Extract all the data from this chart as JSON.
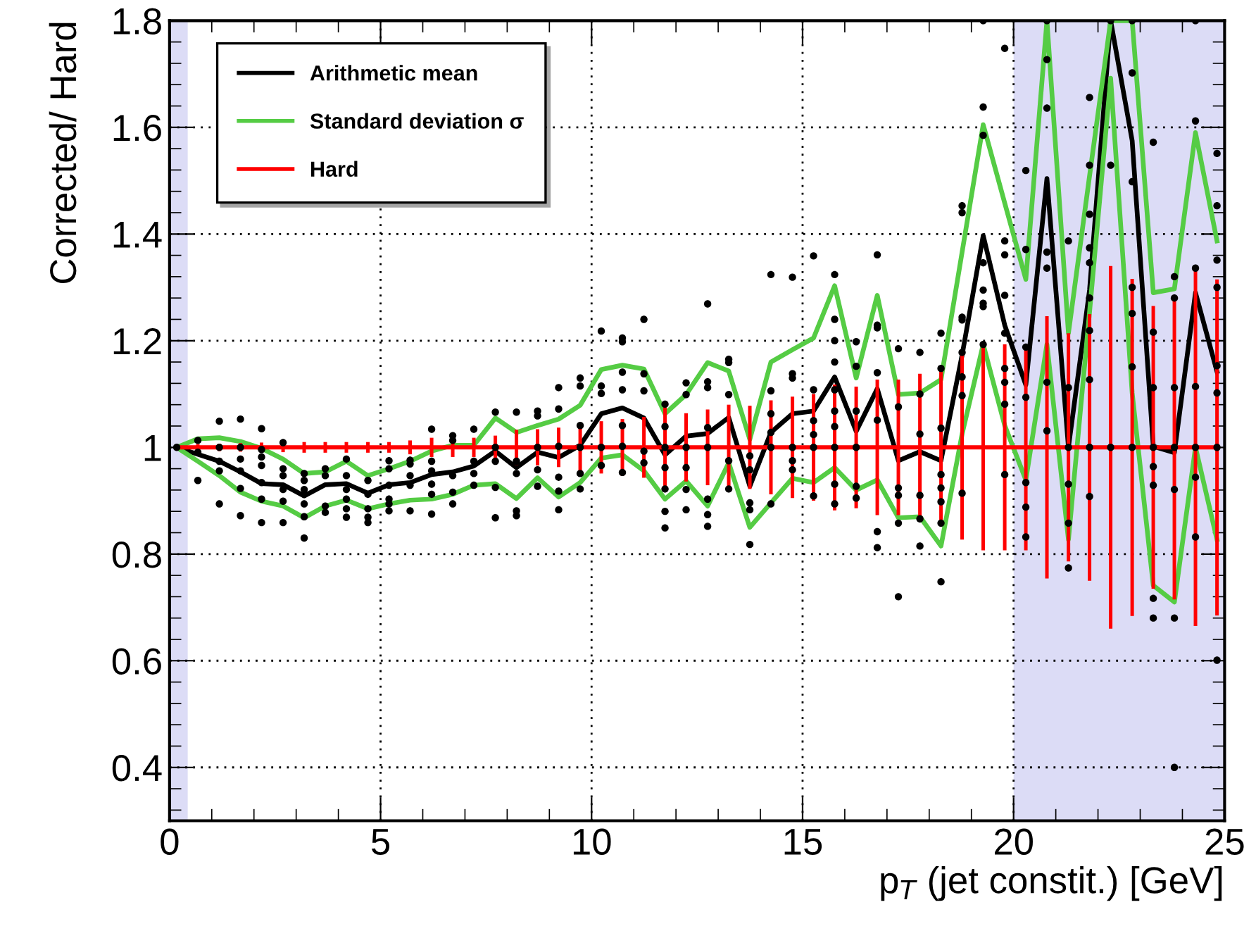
{
  "chart_data": {
    "type": "line",
    "xlabel": "p$_{T}$ (jet constit.) [GeV]",
    "ylabel": "Corrected/ Hard",
    "xlim": [
      0,
      25
    ],
    "xticks": [
      0,
      5,
      10,
      15,
      20,
      25
    ],
    "ylim": [
      0.3,
      1.8
    ],
    "yticks": [
      0.4,
      0.6,
      0.8,
      1,
      1.2,
      1.4,
      1.6,
      1.8
    ],
    "grid": true,
    "legend": "top left",
    "x": [
      0.17,
      0.67,
      1.18,
      1.68,
      2.18,
      2.69,
      3.19,
      3.69,
      4.19,
      4.7,
      5.2,
      5.7,
      6.21,
      6.71,
      7.21,
      7.72,
      8.22,
      8.72,
      9.22,
      9.73,
      10.23,
      10.73,
      11.24,
      11.74,
      12.24,
      12.75,
      13.25,
      13.75,
      14.25,
      14.76,
      15.26,
      15.76,
      16.27,
      16.77,
      17.27,
      17.78,
      18.28,
      18.78,
      19.28,
      19.79,
      20.29,
      20.79,
      21.3,
      21.8,
      22.3,
      22.81,
      23.31,
      23.81,
      24.31,
      24.82
    ],
    "bands": [
      {
        "axis": "x",
        "from": 0,
        "to": 0.43,
        "color": "#dcdcf6"
      },
      {
        "axis": "x",
        "from": 20,
        "to": 25,
        "color": "#dcdcf6"
      }
    ],
    "series": [
      {
        "type": "scatter",
        "color": "#000000",
        "marker": "circle",
        "x": [
          0.17,
          0.67,
          0.67,
          0.67,
          1.18,
          1.18,
          1.18,
          1.18,
          1.18,
          1.68,
          1.68,
          1.68,
          1.68,
          1.68,
          1.68,
          2.18,
          2.18,
          2.18,
          2.18,
          2.18,
          2.18,
          2.18,
          2.69,
          2.69,
          2.69,
          2.69,
          2.69,
          2.69,
          3.19,
          3.19,
          3.19,
          3.19,
          3.19,
          3.19,
          3.19,
          3.69,
          3.69,
          3.69,
          3.69,
          4.19,
          4.19,
          4.19,
          4.19,
          4.19,
          4.19,
          4.7,
          4.7,
          4.7,
          4.7,
          4.7,
          5.2,
          5.2,
          5.2,
          5.2,
          5.2,
          5.2,
          5.7,
          5.7,
          5.7,
          5.7,
          5.7,
          6.21,
          6.21,
          6.21,
          6.21,
          6.21,
          6.21,
          6.71,
          6.71,
          6.71,
          6.71,
          6.71,
          7.21,
          7.21,
          7.21,
          7.21,
          7.72,
          7.72,
          7.72,
          7.72,
          7.72,
          8.22,
          8.22,
          8.22,
          8.22,
          8.22,
          8.72,
          8.72,
          8.72,
          8.72,
          8.72,
          9.22,
          9.22,
          9.22,
          9.22,
          9.22,
          9.22,
          9.73,
          9.73,
          9.73,
          9.73,
          9.73,
          9.73,
          10.23,
          10.23,
          10.23,
          10.23,
          10.23,
          10.73,
          10.73,
          10.73,
          10.73,
          10.73,
          10.73,
          10.73,
          11.24,
          11.24,
          11.24,
          11.24,
          11.24,
          11.74,
          11.74,
          11.74,
          11.74,
          11.74,
          11.74,
          11.74,
          12.24,
          12.24,
          12.24,
          12.24,
          12.24,
          12.24,
          12.75,
          12.75,
          12.75,
          12.75,
          12.75,
          12.75,
          12.75,
          12.75,
          13.25,
          13.25,
          13.25,
          13.25,
          13.25,
          13.75,
          13.75,
          13.75,
          13.75,
          13.75,
          14.25,
          14.25,
          14.25,
          14.25,
          14.25,
          14.25,
          14.76,
          14.76,
          14.76,
          14.76,
          14.76,
          14.76,
          15.26,
          15.26,
          15.26,
          15.26,
          15.26,
          15.26,
          15.76,
          15.76,
          15.76,
          15.76,
          15.76,
          15.76,
          15.76,
          15.76,
          15.76,
          15.76,
          16.27,
          16.27,
          16.27,
          16.27,
          16.27,
          16.27,
          16.77,
          16.77,
          16.77,
          16.77,
          16.77,
          16.77,
          16.77,
          17.27,
          17.27,
          17.27,
          17.27,
          17.27,
          17.27,
          17.78,
          17.78,
          17.78,
          17.78,
          17.78,
          17.78,
          18.28,
          18.28,
          18.28,
          18.28,
          18.28,
          18.28,
          18.28,
          18.28,
          18.78,
          18.78,
          18.78,
          18.78,
          18.78,
          18.78,
          18.78,
          18.78,
          19.28,
          19.28,
          19.28,
          19.28,
          19.28,
          19.28,
          19.28,
          19.28,
          19.79,
          19.79,
          19.79,
          19.79,
          19.79,
          19.79,
          19.79,
          19.79,
          19.79,
          20.29,
          20.29,
          20.29,
          20.29,
          20.29,
          20.29,
          20.29,
          20.79,
          20.79,
          20.79,
          20.79,
          20.79,
          20.79,
          20.79,
          21.3,
          21.3,
          21.3,
          21.3,
          21.3,
          21.3,
          21.8,
          21.8,
          21.8,
          21.8,
          21.8,
          21.8,
          21.8,
          21.8,
          21.8,
          21.8,
          22.3,
          22.3,
          22.3,
          22.81,
          22.81,
          22.81,
          22.81,
          22.81,
          22.81,
          22.81,
          23.31,
          23.31,
          23.31,
          23.31,
          23.31,
          23.31,
          23.31,
          23.31,
          23.81,
          23.81,
          23.81,
          23.81,
          23.81,
          23.81,
          23.81,
          24.31,
          24.31,
          24.31,
          24.31,
          24.31,
          24.31,
          24.31,
          24.82,
          24.82,
          24.82,
          24.82,
          24.82,
          24.82,
          24.82,
          24.82
        ],
        "values": [
          1.0,
          1.013,
          0.991,
          0.938,
          1.049,
          1.0,
          0.974,
          0.956,
          0.894,
          1.053,
          1.0,
          0.978,
          0.956,
          0.923,
          0.872,
          1.035,
          0.996,
          0.982,
          0.966,
          0.934,
          0.903,
          0.859,
          1.009,
          0.96,
          0.947,
          0.921,
          0.899,
          0.859,
          0.951,
          0.938,
          0.921,
          0.912,
          0.894,
          0.87,
          0.83,
          0.96,
          0.947,
          0.89,
          0.878,
          0.978,
          0.947,
          0.921,
          0.903,
          0.885,
          0.869,
          0.938,
          0.912,
          0.885,
          0.869,
          0.859,
          0.975,
          0.96,
          0.929,
          0.903,
          0.894,
          0.881,
          0.976,
          0.969,
          0.947,
          0.929,
          0.881,
          1.034,
          0.974,
          0.956,
          0.931,
          0.912,
          0.875,
          1.022,
          1.013,
          0.947,
          0.916,
          0.894,
          1.034,
          0.974,
          0.951,
          0.929,
          1.066,
          1.0,
          0.974,
          0.925,
          0.868,
          1.066,
          0.974,
          0.951,
          0.881,
          0.872,
          1.068,
          1.059,
          1.0,
          0.958,
          0.927,
          1.112,
          1.072,
          1.002,
          0.944,
          0.918,
          0.883,
          1.13,
          1.115,
          1.041,
          1.0,
          0.951,
          0.922,
          1.218,
          1.115,
          1.101,
          1.0,
          0.966,
          1.205,
          1.198,
          1.141,
          1.108,
          1.041,
          1.002,
          0.953,
          1.24,
          1.138,
          1.106,
          0.993,
          0.971,
          1.081,
          1.039,
          1.0,
          0.962,
          0.922,
          0.88,
          0.849,
          1.121,
          1.099,
          1.0,
          0.962,
          0.921,
          0.883,
          1.269,
          1.123,
          1.112,
          1.037,
          1.0,
          0.903,
          0.874,
          0.852,
          1.165,
          1.159,
          1.099,
          0.975,
          0.922,
          0.984,
          0.958,
          0.896,
          0.883,
          0.818,
          1.324,
          1.106,
          1.063,
          1.028,
          1.0,
          0.894,
          1.319,
          1.138,
          1.13,
          1.0,
          0.975,
          0.958,
          1.359,
          1.108,
          1.05,
          1.024,
          1.0,
          0.909,
          1.324,
          1.24,
          1.2,
          1.16,
          1.108,
          1.068,
          1.039,
          1.0,
          0.931,
          0.894,
          1.198,
          1.152,
          1.068,
          1.0,
          0.927,
          0.905,
          1.361,
          1.229,
          1.224,
          1.14,
          1.051,
          0.842,
          0.812,
          1.185,
          1.076,
          0.924,
          0.91,
          0.858,
          0.72,
          1.178,
          1.1,
          1.025,
          0.91,
          0.866,
          0.815,
          1.214,
          1.148,
          1.036,
          0.949,
          0.924,
          0.898,
          0.858,
          0.748,
          1.453,
          1.44,
          1.244,
          1.239,
          1.178,
          1.132,
          1.097,
          0.914,
          1.8,
          1.638,
          1.585,
          1.346,
          1.295,
          1.27,
          1.264,
          1.193,
          1.748,
          1.387,
          1.361,
          1.285,
          1.214,
          1.148,
          1.122,
          1.081,
          0.949,
          1.519,
          1.371,
          1.188,
          1.094,
          0.934,
          0.888,
          0.832,
          1.8,
          1.727,
          1.636,
          1.366,
          1.336,
          1.122,
          1.031,
          1.387,
          1.112,
          1.0,
          0.931,
          0.858,
          0.774,
          1.656,
          1.529,
          1.437,
          1.374,
          1.346,
          1.28,
          1.219,
          1.127,
          1.0,
          0.908,
          1.8,
          1.529,
          1.0,
          1.8,
          1.702,
          1.498,
          1.3,
          1.251,
          1.151,
          1.0,
          1.572,
          1.216,
          1.112,
          1.0,
          0.964,
          0.929,
          0.717,
          0.68,
          1.32,
          1.28,
          1.112,
          1.0,
          0.921,
          0.68,
          0.4,
          1.8,
          1.612,
          1.336,
          1.114,
          1.0,
          0.944,
          0.832,
          1.551,
          1.453,
          1.351,
          1.3,
          1.153,
          1.102,
          1.0,
          0.601
        ]
      },
      {
        "name": "Arithmetic mean",
        "color": "#000000",
        "line_style": "solid",
        "values": [
          1.0,
          0.987,
          0.974,
          0.954,
          0.932,
          0.93,
          0.909,
          0.93,
          0.932,
          0.914,
          0.93,
          0.934,
          0.949,
          0.954,
          0.965,
          0.993,
          0.962,
          0.991,
          0.981,
          1.004,
          1.063,
          1.074,
          1.055,
          0.986,
          1.021,
          1.026,
          1.056,
          0.927,
          1.028,
          1.063,
          1.068,
          1.132,
          1.03,
          1.11,
          0.975,
          0.992,
          0.975,
          1.173,
          1.397,
          1.229,
          1.117,
          1.504,
          1.0,
          1.295,
          1.8,
          1.575,
          1.002,
          0.99,
          1.29,
          1.142
        ]
      },
      {
        "name": "Standard deviation σ",
        "color": "#55cc44",
        "line_style": "solid",
        "values": [
          1.0,
          1.016,
          1.018,
          1.011,
          0.998,
          0.978,
          0.951,
          0.954,
          0.974,
          0.947,
          0.96,
          0.974,
          0.993,
          1.004,
          1.004,
          1.055,
          1.028,
          1.041,
          1.053,
          1.079,
          1.146,
          1.154,
          1.147,
          1.063,
          1.099,
          1.159,
          1.143,
          1.015,
          1.16,
          1.183,
          1.205,
          1.303,
          1.13,
          1.285,
          1.099,
          1.102,
          1.127,
          1.366,
          1.605,
          1.458,
          1.315,
          1.8,
          1.214,
          1.509,
          1.8,
          1.8,
          1.29,
          1.297,
          1.59,
          1.387
        ]
      },
      {
        "color": "#55cc44",
        "line_style": "solid",
        "values": [
          1.0,
          0.974,
          0.947,
          0.916,
          0.899,
          0.89,
          0.868,
          0.89,
          0.901,
          0.885,
          0.894,
          0.901,
          0.903,
          0.912,
          0.929,
          0.932,
          0.904,
          0.943,
          0.907,
          0.934,
          0.98,
          0.986,
          0.956,
          0.903,
          0.937,
          0.89,
          0.971,
          0.85,
          0.896,
          0.942,
          0.934,
          0.962,
          0.92,
          0.939,
          0.868,
          0.87,
          0.815,
          1.025,
          1.193,
          1.041,
          0.939,
          1.193,
          0.827,
          1.254,
          1.692,
          1.102,
          0.741,
          0.71,
          1.0,
          0.827
        ]
      },
      {
        "name": "Hard",
        "color": "#ff0000",
        "line_style": "solid",
        "values": [
          1,
          1,
          1,
          1,
          1,
          1,
          1,
          1,
          1,
          1,
          1,
          1,
          1,
          1,
          1,
          1,
          1,
          1,
          1,
          1,
          1,
          1,
          1,
          1,
          1,
          1,
          1,
          1,
          1,
          1,
          1,
          1,
          1,
          1,
          1,
          1,
          1,
          1,
          1,
          1,
          1,
          1,
          1,
          1,
          1,
          1,
          1,
          1,
          1,
          1
        ],
        "errors": [
          0.005,
          0.006,
          0.007,
          0.008,
          0.009,
          0.009,
          0.01,
          0.01,
          0.01,
          0.01,
          0.01,
          0.013,
          0.018,
          0.018,
          0.018,
          0.022,
          0.033,
          0.034,
          0.037,
          0.044,
          0.049,
          0.053,
          0.057,
          0.075,
          0.064,
          0.071,
          0.08,
          0.078,
          0.088,
          0.095,
          0.1,
          0.118,
          0.114,
          0.127,
          0.127,
          0.138,
          0.145,
          0.173,
          0.193,
          0.193,
          0.193,
          0.246,
          0.214,
          0.25,
          0.34,
          0.316,
          0.265,
          0.285,
          0.335,
          0.315
        ]
      }
    ]
  }
}
